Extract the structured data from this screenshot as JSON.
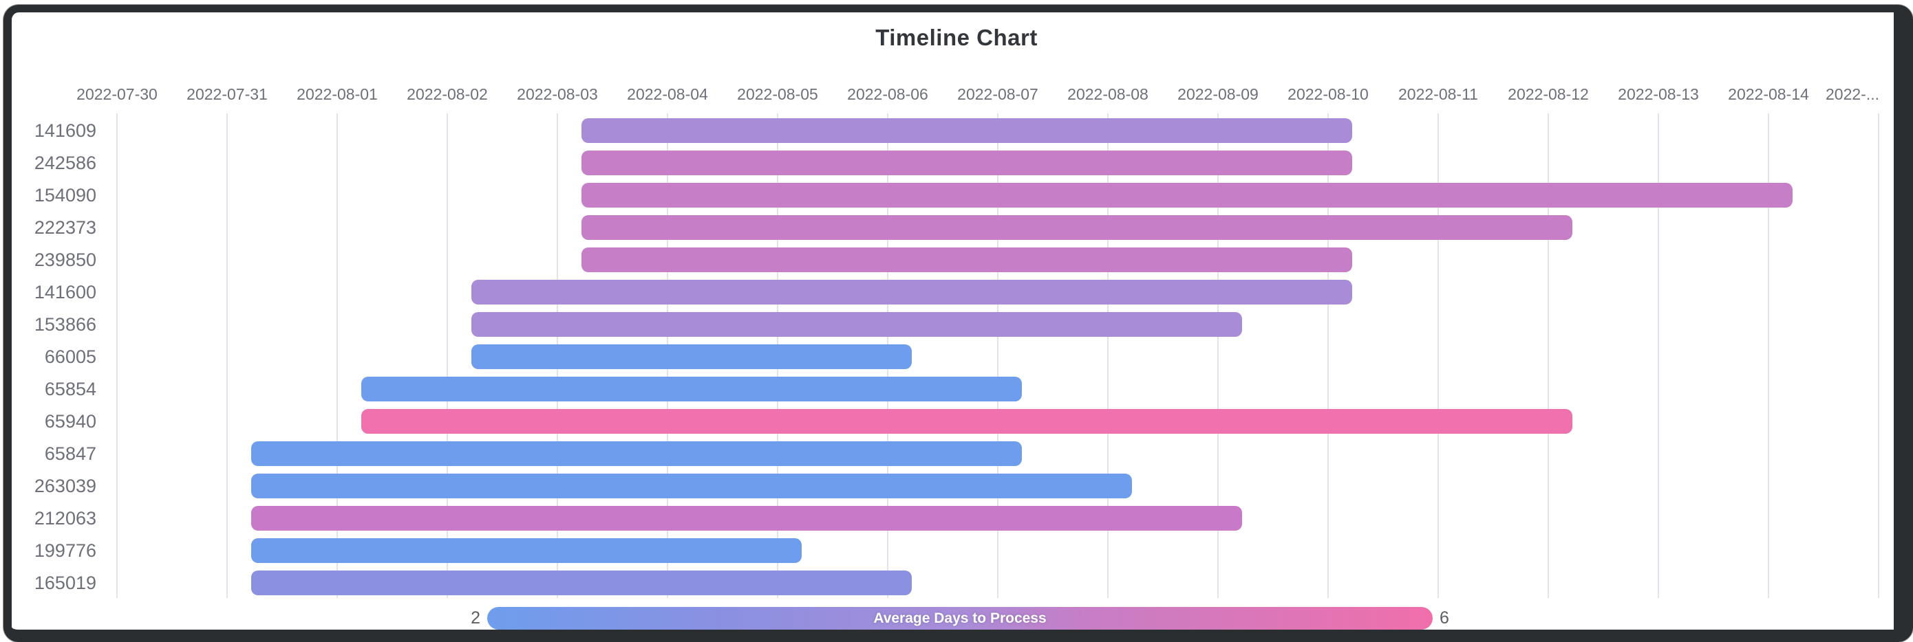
{
  "frame": {
    "color": "#2b2e30"
  },
  "chart_data": {
    "type": "bar",
    "variant": "horizontal-timeline",
    "title": "Timeline Chart",
    "x_axis": {
      "tick_labels": [
        "2022-07-30",
        "2022-07-31",
        "2022-08-01",
        "2022-08-02",
        "2022-08-03",
        "2022-08-04",
        "2022-08-05",
        "2022-08-06",
        "2022-08-07",
        "2022-08-08",
        "2022-08-09",
        "2022-08-10",
        "2022-08-11",
        "2022-08-12",
        "2022-08-13",
        "2022-08-14",
        "2022-..."
      ],
      "grid": true,
      "position": "top"
    },
    "y_axis": {
      "categories": [
        "141609",
        "242586",
        "154090",
        "222373",
        "239850",
        "141600",
        "153866",
        "66005",
        "65854",
        "65940",
        "65847",
        "263039",
        "212063",
        "199776",
        "165019"
      ]
    },
    "series": [
      {
        "id": "141609",
        "start": "2022-08-03",
        "end": "2022-08-10",
        "duration_days": 7,
        "color": "#a88cd8",
        "avg_days_to_process": 4
      },
      {
        "id": "242586",
        "start": "2022-08-03",
        "end": "2022-08-10",
        "duration_days": 7,
        "color": "#c67ec6",
        "avg_days_to_process": 4.5
      },
      {
        "id": "154090",
        "start": "2022-08-03",
        "end": "2022-08-14",
        "duration_days": 11,
        "color": "#c67ec6",
        "avg_days_to_process": 4.5
      },
      {
        "id": "222373",
        "start": "2022-08-03",
        "end": "2022-08-12",
        "duration_days": 9,
        "color": "#c67ec6",
        "avg_days_to_process": 4.5
      },
      {
        "id": "239850",
        "start": "2022-08-03",
        "end": "2022-08-10",
        "duration_days": 7,
        "color": "#c67ec6",
        "avg_days_to_process": 4.5
      },
      {
        "id": "141600",
        "start": "2022-08-02",
        "end": "2022-08-10",
        "duration_days": 8,
        "color": "#a88cd8",
        "avg_days_to_process": 4
      },
      {
        "id": "153866",
        "start": "2022-08-02",
        "end": "2022-08-09",
        "duration_days": 7,
        "color": "#a88cd8",
        "avg_days_to_process": 4
      },
      {
        "id": "66005",
        "start": "2022-08-02",
        "end": "2022-08-06",
        "duration_days": 4,
        "color": "#6f9ded",
        "avg_days_to_process": 2
      },
      {
        "id": "65854",
        "start": "2022-08-01",
        "end": "2022-08-07",
        "duration_days": 6,
        "color": "#6f9ded",
        "avg_days_to_process": 2
      },
      {
        "id": "65940",
        "start": "2022-08-01",
        "end": "2022-08-12",
        "duration_days": 11,
        "color": "#ef72ae",
        "avg_days_to_process": 6
      },
      {
        "id": "65847",
        "start": "2022-07-31",
        "end": "2022-08-07",
        "duration_days": 7,
        "color": "#6f9ded",
        "avg_days_to_process": 2
      },
      {
        "id": "263039",
        "start": "2022-07-31",
        "end": "2022-08-08",
        "duration_days": 8,
        "color": "#6f9ded",
        "avg_days_to_process": 2
      },
      {
        "id": "212063",
        "start": "2022-07-31",
        "end": "2022-08-09",
        "duration_days": 9,
        "color": "#c87ac8",
        "avg_days_to_process": 5
      },
      {
        "id": "199776",
        "start": "2022-07-31",
        "end": "2022-08-05",
        "duration_days": 5,
        "color": "#6f9ded",
        "avg_days_to_process": 2
      },
      {
        "id": "165019",
        "start": "2022-07-31",
        "end": "2022-08-06",
        "duration_days": 6,
        "color": "#8b90e1",
        "avg_days_to_process": 3
      }
    ],
    "legend": {
      "label": "Average Days to Process",
      "min": "2",
      "max": "6",
      "gradient": [
        "#6f9ded",
        "#8b90e1",
        "#a88cd8",
        "#c67ec6",
        "#f06fab"
      ],
      "position": "bottom-center"
    },
    "style": {
      "axis_label_color": "#6e7079",
      "grid_color": "#e1e4ec",
      "title_color": "#33373b",
      "background": "#ffffff"
    }
  }
}
